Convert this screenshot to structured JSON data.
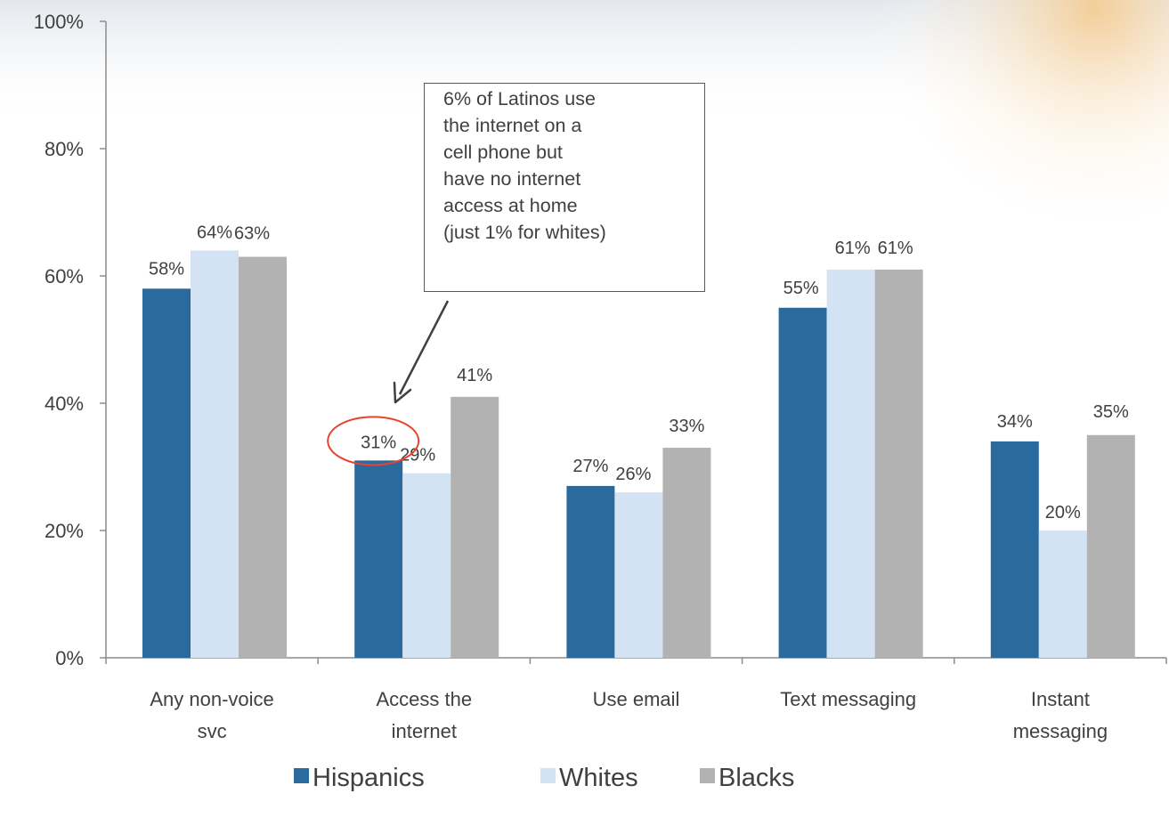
{
  "chart_data": {
    "type": "bar",
    "title": "",
    "xlabel": "",
    "ylabel": "",
    "ylim": [
      0,
      100
    ],
    "yticks": [
      "0%",
      "20%",
      "40%",
      "60%",
      "80%",
      "100%"
    ],
    "ytick_values": [
      0,
      20,
      40,
      60,
      80,
      100
    ],
    "categories": [
      [
        "Any non-voice",
        "svc"
      ],
      [
        "Access the",
        "internet"
      ],
      [
        "Use email"
      ],
      [
        "Text messaging"
      ],
      [
        "Instant",
        "messaging"
      ]
    ],
    "series": [
      {
        "name": "Hispanics",
        "color": "#2a6a9c",
        "values": [
          58,
          31,
          27,
          55,
          34
        ],
        "labels": [
          "58%",
          "31%",
          "27%",
          "55%",
          "34%"
        ]
      },
      {
        "name": "Whites",
        "color": "#d3e3f3",
        "values": [
          64,
          29,
          26,
          61,
          20
        ],
        "labels": [
          "64%",
          "29%",
          "26%",
          "61%",
          "20%"
        ]
      },
      {
        "name": "Blacks",
        "color": "#b2b2b2",
        "values": [
          63,
          41,
          33,
          61,
          35
        ],
        "labels": [
          "63%",
          "41%",
          "33%",
          "61%",
          "35%"
        ]
      }
    ],
    "legend_position": "bottom",
    "grid": false,
    "annotations": {
      "callout_text": "6% of Latinos use\n the internet on a\n cell phone but\n have no internet\n access at home\n (just 1% for whites)",
      "highlight": {
        "series": "Hispanics",
        "category_index": 1,
        "label": "31%",
        "color": "#e8432e"
      }
    }
  }
}
